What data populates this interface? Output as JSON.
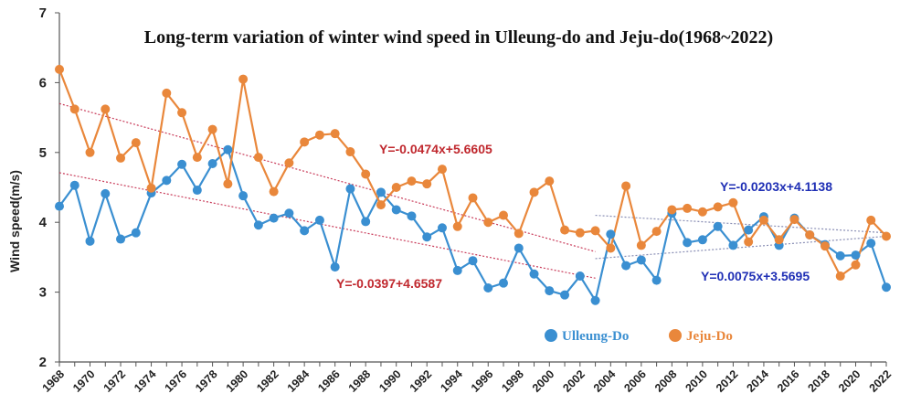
{
  "chart_data": {
    "type": "line",
    "title": "Long-term variation of winter wind speed in Ulleung-do and Jeju-do(1968~2022)",
    "xlabel": "",
    "ylabel": "Wind speed(m/s)",
    "xlim": [
      1968,
      2022
    ],
    "ylim": [
      2,
      7
    ],
    "yticks": [
      2,
      3,
      4,
      5,
      6,
      7
    ],
    "xticks": [
      1968,
      1970,
      1972,
      1974,
      1976,
      1978,
      1980,
      1982,
      1984,
      1986,
      1988,
      1990,
      1992,
      1994,
      1996,
      1998,
      2000,
      2002,
      2004,
      2006,
      2008,
      2010,
      2012,
      2014,
      2016,
      2018,
      2020,
      2022
    ],
    "legend_position": "bottom-center",
    "x": [
      1968,
      1969,
      1970,
      1971,
      1972,
      1973,
      1974,
      1975,
      1976,
      1977,
      1978,
      1979,
      1980,
      1981,
      1982,
      1983,
      1984,
      1985,
      1986,
      1987,
      1988,
      1989,
      1990,
      1991,
      1992,
      1993,
      1994,
      1995,
      1996,
      1997,
      1998,
      1999,
      2000,
      2001,
      2002,
      2003,
      2004,
      2005,
      2006,
      2007,
      2008,
      2009,
      2010,
      2011,
      2012,
      2013,
      2014,
      2015,
      2016,
      2017,
      2018,
      2019,
      2020,
      2021,
      2022
    ],
    "series": [
      {
        "name": "Ulleung-Do",
        "color": "#3a8fd1",
        "values": [
          4.23,
          4.53,
          3.73,
          4.41,
          3.76,
          3.85,
          4.42,
          4.6,
          4.83,
          4.46,
          4.84,
          5.04,
          4.38,
          3.96,
          4.06,
          4.13,
          3.88,
          4.03,
          3.36,
          4.48,
          4.01,
          4.43,
          4.18,
          4.09,
          3.79,
          3.92,
          3.31,
          3.45,
          3.06,
          3.13,
          3.63,
          3.26,
          3.02,
          2.96,
          3.23,
          2.88,
          3.83,
          3.38,
          3.46,
          3.17,
          4.13,
          3.71,
          3.75,
          3.94,
          3.67,
          3.89,
          4.08,
          3.67,
          4.06,
          3.82,
          3.68,
          3.52,
          3.53,
          3.7,
          3.07
        ]
      },
      {
        "name": "Jeju-Do",
        "color": "#e9873b",
        "values": [
          6.19,
          5.62,
          5.0,
          5.62,
          4.92,
          5.14,
          4.49,
          5.85,
          5.57,
          4.93,
          5.33,
          4.55,
          6.05,
          4.93,
          4.44,
          4.85,
          5.15,
          5.25,
          5.27,
          5.01,
          4.69,
          4.25,
          4.5,
          4.59,
          4.55,
          4.76,
          3.94,
          4.35,
          4.0,
          4.1,
          3.84,
          4.43,
          4.59,
          3.89,
          3.85,
          3.88,
          3.63,
          4.52,
          3.67,
          3.87,
          4.18,
          4.2,
          4.15,
          4.22,
          4.28,
          3.72,
          4.03,
          3.75,
          4.04,
          3.82,
          3.66,
          3.23,
          3.39,
          4.03,
          3.8
        ]
      }
    ],
    "trendlines": [
      {
        "series": "Jeju-Do",
        "color": "#c93c5a",
        "label": "Y=-0.0474x+5.6605",
        "label_color": "#c0282e",
        "x_range": [
          1968,
          2003
        ],
        "y_range": [
          5.7,
          3.58
        ]
      },
      {
        "series": "Ulleung-Do",
        "color": "#c93c5a",
        "label": "Y=-0.0397+4.6587",
        "label_color": "#c0282e",
        "x_range": [
          1968,
          2003
        ],
        "y_range": [
          4.71,
          3.2
        ]
      },
      {
        "series": "Jeju-Do",
        "color": "#8a8fb5",
        "label": "Y=-0.0203x+4.1138",
        "label_color": "#1f2fb5",
        "x_range": [
          2003,
          2022
        ],
        "y_range": [
          4.1,
          3.85
        ]
      },
      {
        "series": "Ulleung-Do",
        "color": "#8a8fb5",
        "label": "Y=0.0075x+3.5695",
        "label_color": "#1f2fb5",
        "x_range": [
          2003,
          2022
        ],
        "y_range": [
          3.48,
          3.8
        ]
      }
    ]
  }
}
